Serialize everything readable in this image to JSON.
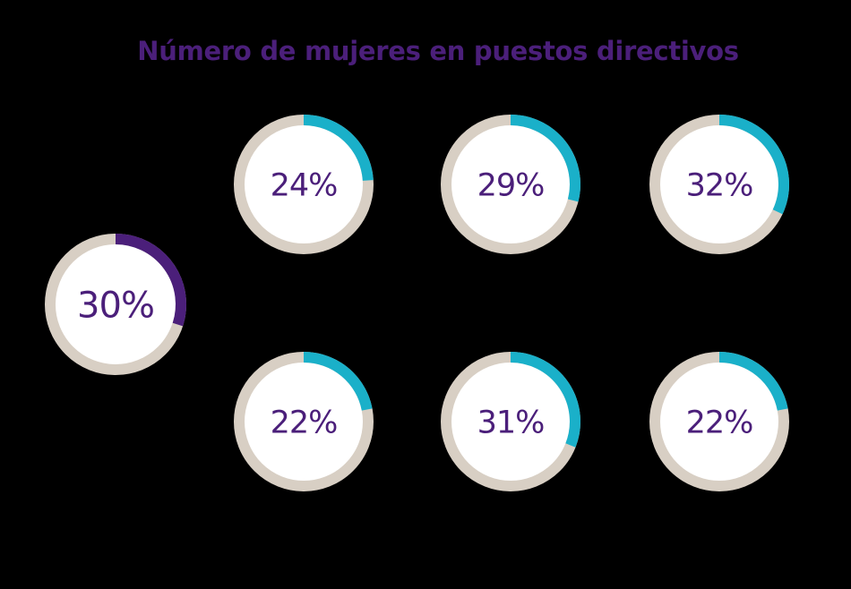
{
  "title": "Número de mujeres en puestos directivos",
  "colors": {
    "background": "#000000",
    "title": "#4b1f7a",
    "track": "#d8cfc4",
    "center_fill": "#ffffff",
    "label": "#4b1f7a",
    "highlight_arc": "#4b1f7a",
    "arc": "#1ab0c9"
  },
  "chart_data": {
    "type": "pie",
    "title": "Número de mujeres en puestos directivos",
    "items": [
      {
        "value": 30,
        "label": "30%",
        "highlight": true
      },
      {
        "value": 24,
        "label": "24%",
        "highlight": false
      },
      {
        "value": 29,
        "label": "29%",
        "highlight": false
      },
      {
        "value": 32,
        "label": "32%",
        "highlight": false
      },
      {
        "value": 22,
        "label": "22%",
        "highlight": false
      },
      {
        "value": 31,
        "label": "31%",
        "highlight": false
      },
      {
        "value": 22,
        "label": "22%",
        "highlight": false
      }
    ]
  }
}
